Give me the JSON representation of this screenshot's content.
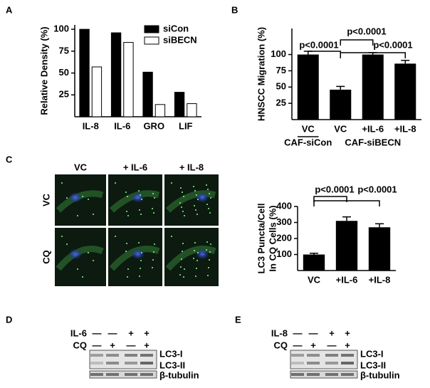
{
  "panel_labels": [
    "A",
    "B",
    "C",
    "D",
    "E"
  ],
  "chart_data": [
    {
      "type": "bar",
      "y_label": [
        "Relative Density (%)"
      ],
      "categories": [
        "IL-8",
        "IL-6",
        "GRO",
        "LIF"
      ],
      "series": [
        {
          "name": "siCon",
          "color": "#000000",
          "values": [
            100,
            96,
            51,
            28
          ]
        },
        {
          "name": "siBECN",
          "color": "#ffffff",
          "values": [
            57,
            85,
            14,
            15
          ]
        }
      ],
      "ylim": [
        0,
        105
      ],
      "yticks": [
        25,
        50,
        75,
        100
      ],
      "legend": "upper right"
    },
    {
      "type": "bar",
      "y_label": [
        "HNSCC Migration  (%)"
      ],
      "categories": [
        "VC",
        "VC",
        "+IL-6",
        "+IL-8"
      ],
      "groups": [
        "CAF-siCon",
        "CAF-siBECN"
      ],
      "values": [
        100,
        46,
        100,
        86
      ],
      "errors": [
        5,
        5,
        3,
        5
      ],
      "color": "#000000",
      "ylim": [
        0,
        140
      ],
      "yticks": [
        25,
        50,
        75,
        100
      ],
      "annotations": [
        "p<0.0001",
        "p<0.0001",
        "p<0.0001"
      ]
    },
    {
      "type": "bar",
      "y_label": [
        "LC3 Puncta/Cell",
        "In CQ Cells (%)"
      ],
      "categories": [
        "VC",
        "+IL-6",
        "+IL-8"
      ],
      "values": [
        100,
        310,
        270
      ],
      "errors": [
        8,
        25,
        22
      ],
      "color": "#000000",
      "ylim": [
        0,
        400
      ],
      "yticks": [
        100,
        200,
        300,
        400
      ],
      "annotations": [
        "p<0.0001",
        "p<0.0001"
      ]
    }
  ],
  "microscopy": {
    "columns": [
      "VC",
      "+ IL-6",
      "+ IL-8"
    ],
    "rows": [
      "VC",
      "CQ"
    ]
  },
  "blots": [
    {
      "rows": [
        {
          "label": "IL-6",
          "signs": [
            "—",
            "—",
            "+",
            "+"
          ]
        },
        {
          "label": "CQ",
          "signs": [
            "—",
            "+",
            "—",
            "+"
          ]
        }
      ],
      "bands": [
        "LC3-I",
        "LC3-II",
        "β-tubulin"
      ]
    },
    {
      "rows": [
        {
          "label": "IL-8",
          "signs": [
            "—",
            "—",
            "+",
            "+"
          ]
        },
        {
          "label": "CQ",
          "signs": [
            "—",
            "+",
            "—",
            "+"
          ]
        }
      ],
      "bands": [
        "LC3-I",
        "LC3-II",
        "β-tubulin"
      ]
    }
  ]
}
